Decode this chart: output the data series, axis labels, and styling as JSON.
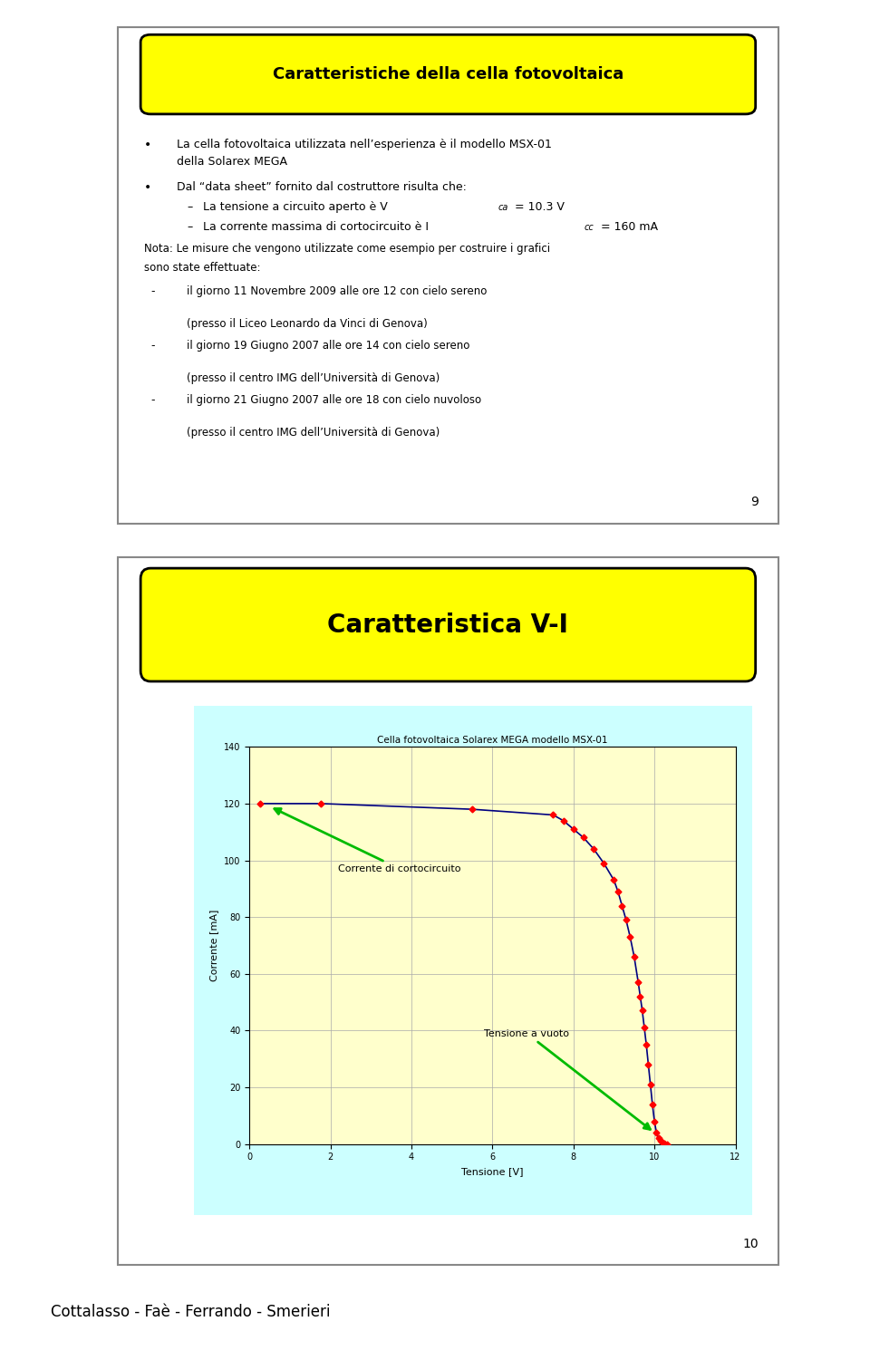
{
  "slide1": {
    "title": "Caratteristiche della cella fotovoltaica",
    "title_bg": "#FFFF00",
    "bullet1_line1": "La cella fotovoltaica utilizzata nell’esperienza è il modello MSX-01",
    "bullet1_line2": "della Solarex MEGA",
    "bullet2_intro": "Dal “data sheet” fornito dal costruttore risulta che:",
    "sub1_pre": "La tensione a circuito aperto è V",
    "sub1_sub": "ca",
    "sub1_post": " = 10.3 V",
    "sub2_pre": "La corrente massima di cortocircuito è I",
    "sub2_sub": "cc",
    "sub2_post": " = 160 mA",
    "nota_line1": "Nota: Le misure che vengono utilizzate come esempio per costruire i grafici",
    "nota_line2": "sono state effettuate:",
    "item1_main": "il giorno 11 Novembre 2009 alle ore 12 con cielo sereno",
    "item1_sub": "(presso il Liceo Leonardo da Vinci di Genova)",
    "item2_main": "il giorno 19 Giugno 2007 alle ore 14 con cielo sereno",
    "item2_sub": "(presso il centro IMG dell’Università di Genova)",
    "item3_main": "il giorno 21 Giugno 2007 alle ore 18 con cielo nuvoloso",
    "item3_sub": "(presso il centro IMG dell’Università di Genova)",
    "page_number": "9"
  },
  "slide2": {
    "title": "Caratteristica V-I",
    "title_bg": "#FFFF00",
    "chart_title": "Cella fotovoltaica Solarex MEGA modello MSX-01",
    "xlabel": "Tensione [V]",
    "ylabel": "Corrente [mA]",
    "annotation1": "Corrente di cortocircuito",
    "annotation2": "Tensione a vuoto",
    "page_number": "10",
    "vi_voltage": [
      0.27,
      1.77,
      5.5,
      7.5,
      7.75,
      8.0,
      8.25,
      8.5,
      8.75,
      9.0,
      9.1,
      9.2,
      9.3,
      9.4,
      9.5,
      9.6,
      9.65,
      9.7,
      9.75,
      9.8,
      9.85,
      9.9,
      9.95,
      10.0,
      10.05,
      10.1,
      10.15,
      10.2,
      10.25,
      10.3
    ],
    "vi_current": [
      120,
      120,
      118,
      116,
      114,
      111,
      108,
      104,
      99,
      93,
      89,
      84,
      79,
      73,
      66,
      57,
      52,
      47,
      41,
      35,
      28,
      21,
      14,
      8,
      4,
      2,
      1,
      0.5,
      0.2,
      0
    ]
  },
  "footer": "Cottalasso - Faè - Ferrando - Smerieri",
  "bg_color": "#FFFFFF",
  "chart_bg": "#FFFFCC",
  "chart_outer_bg": "#CCFFFF"
}
